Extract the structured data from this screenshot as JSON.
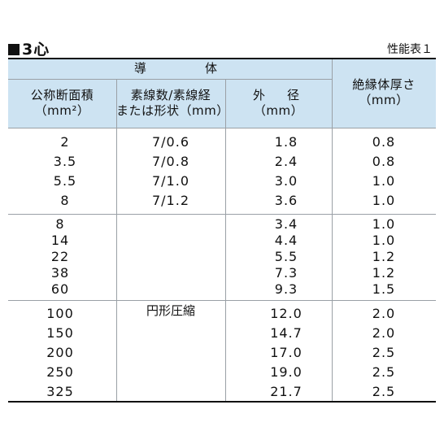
{
  "page": {
    "title": "3心",
    "reference": "性能表１"
  },
  "headers": {
    "conductor": "導　　体",
    "area": "公称断面積",
    "area_unit": "（mm²）",
    "strands": "素線数/素線経",
    "strands_sub": "または形状（mm）",
    "outer": "外　径",
    "outer_unit": "（mm）",
    "insulation": "絶縁体厚さ",
    "insulation_unit": "（mm）"
  },
  "groups": [
    {
      "rows": [
        {
          "area": "2",
          "strands": "7/0.6",
          "outer": "1.8",
          "insulation": "0.8"
        },
        {
          "area": "3.5",
          "strands": "7/0.8",
          "outer": "2.4",
          "insulation": "0.8"
        },
        {
          "area": "5.5",
          "strands": "7/1.0",
          "outer": "3.0",
          "insulation": "1.0"
        },
        {
          "area": "8",
          "strands": "7/1.2",
          "outer": "3.6",
          "insulation": "1.0"
        }
      ]
    },
    {
      "rows": [
        {
          "area": "8",
          "outer": "3.4",
          "insulation": "1.0"
        },
        {
          "area": "14",
          "outer": "4.4",
          "insulation": "1.0"
        },
        {
          "area": "22",
          "outer": "5.5",
          "insulation": "1.2"
        },
        {
          "area": "38",
          "outer": "7.3",
          "insulation": "1.2"
        },
        {
          "area": "60",
          "outer": "9.3",
          "insulation": "1.5"
        }
      ]
    },
    {
      "rows": [
        {
          "area": "100",
          "outer": "12.0",
          "insulation": "2.0"
        },
        {
          "area": "150",
          "outer": "14.7",
          "insulation": "2.0"
        },
        {
          "area": "200",
          "outer": "17.0",
          "insulation": "2.5"
        },
        {
          "area": "250",
          "outer": "19.0",
          "insulation": "2.5"
        },
        {
          "area": "325",
          "outer": "21.7",
          "insulation": "2.5"
        }
      ]
    }
  ],
  "merged_shape": "円形圧縮"
}
